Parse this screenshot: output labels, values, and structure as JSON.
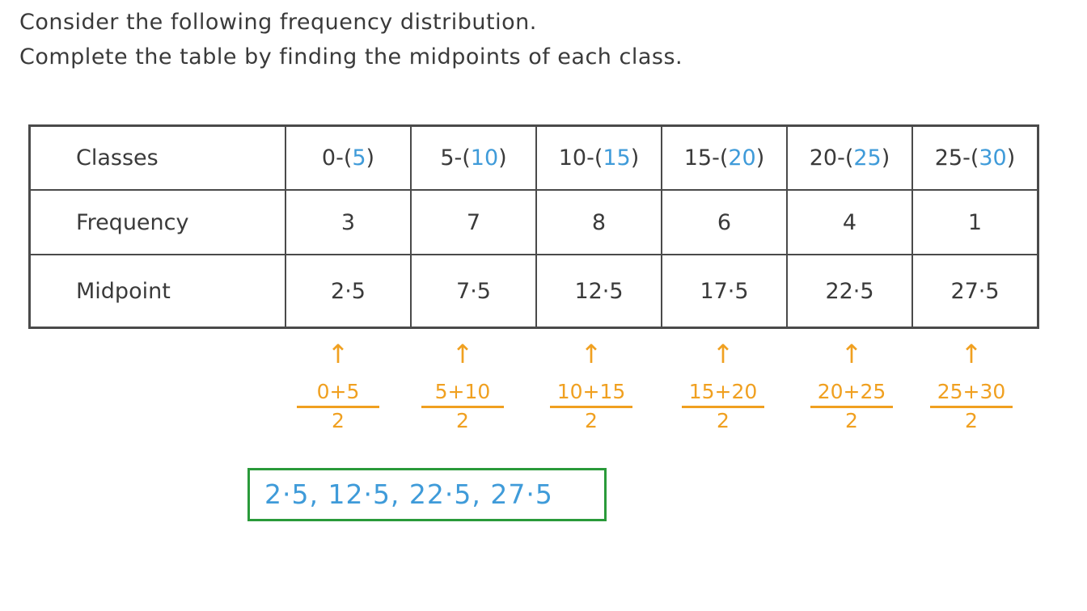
{
  "instructions": {
    "line1": "Consider the following frequency distribution.",
    "line2": "Complete the table by finding the midpoints of each class."
  },
  "table": {
    "row_headers": [
      "Classes",
      "Frequency",
      "Midpoint"
    ],
    "classes": [
      {
        "lower": "0",
        "upper": "5"
      },
      {
        "lower": "5",
        "upper": "10"
      },
      {
        "lower": "10",
        "upper": "15"
      },
      {
        "lower": "15",
        "upper": "20"
      },
      {
        "lower": "20",
        "upper": "25"
      },
      {
        "lower": "25",
        "upper": "30"
      }
    ],
    "frequencies": [
      "3",
      "7",
      "8",
      "6",
      "4",
      "1"
    ],
    "midpoints": [
      "2·5",
      "7·5",
      "12·5",
      "17·5",
      "22·5",
      "27·5"
    ]
  },
  "working": [
    {
      "numerator": "0+5",
      "denominator": "2"
    },
    {
      "numerator": "5+10",
      "denominator": "2"
    },
    {
      "numerator": "10+15",
      "denominator": "2"
    },
    {
      "numerator": "15+20",
      "denominator": "2"
    },
    {
      "numerator": "20+25",
      "denominator": "2"
    },
    {
      "numerator": "25+30",
      "denominator": "2"
    }
  ],
  "arrow_symbol": "↑",
  "answer": "2·5, 12·5, 22·5, 27·5",
  "colors": {
    "text": "#3a3a3a",
    "answer_blue": "#3f9bd9",
    "working_orange": "#f0a020",
    "answer_box_green": "#2a9a3a"
  }
}
